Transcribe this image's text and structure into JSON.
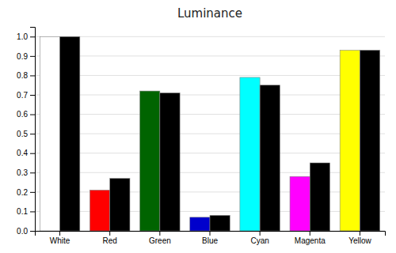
{
  "chart_data": {
    "type": "bar",
    "title": "Luminance",
    "categories": [
      "White",
      "Red",
      "Green",
      "Blue",
      "Cyan",
      "Magenta",
      "Yellow"
    ],
    "series": [
      {
        "colors": [
          "#ffffff",
          "#ff0000",
          "#006400",
          "#0000cc",
          "#00ffff",
          "#ff00ff",
          "#ffff00"
        ],
        "values": [
          1.0,
          0.21,
          0.72,
          0.07,
          0.79,
          0.28,
          0.93
        ]
      },
      {
        "color": "#000000",
        "values": [
          1.0,
          0.27,
          0.71,
          0.08,
          0.75,
          0.35,
          0.93
        ]
      }
    ],
    "ylim": [
      0.0,
      1.05
    ],
    "yticks": [
      {
        "value": 0.0,
        "label": "0.0"
      },
      0.1,
      0.2,
      0.3,
      0.4,
      0.5,
      0.6,
      0.7,
      0.8,
      0.9,
      {
        "value": 1.0,
        "label": "1.0"
      }
    ],
    "grid": true
  }
}
